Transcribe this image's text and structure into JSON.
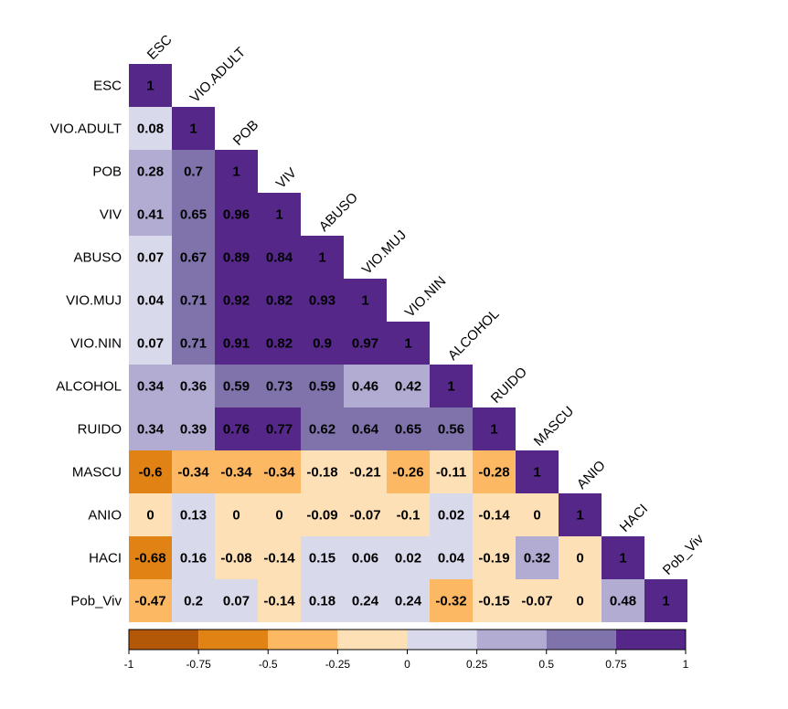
{
  "chart_data": {
    "type": "heatmap",
    "variables": [
      "ESC",
      "VIO.ADULT",
      "POB",
      "VIV",
      "ABUSO",
      "VIO.MUJ",
      "VIO.NIN",
      "ALCOHOL",
      "RUIDO",
      "MASCU",
      "ANIO",
      "HACI",
      "Pob_Viv"
    ],
    "matrix_lower": [
      [
        1
      ],
      [
        0.08,
        1
      ],
      [
        0.28,
        0.7,
        1
      ],
      [
        0.41,
        0.65,
        0.96,
        1
      ],
      [
        0.07,
        0.67,
        0.89,
        0.84,
        1
      ],
      [
        0.04,
        0.71,
        0.92,
        0.82,
        0.93,
        1
      ],
      [
        0.07,
        0.71,
        0.91,
        0.82,
        0.9,
        0.97,
        1
      ],
      [
        0.34,
        0.36,
        0.59,
        0.73,
        0.59,
        0.46,
        0.42,
        1
      ],
      [
        0.34,
        0.39,
        0.76,
        0.77,
        0.62,
        0.64,
        0.65,
        0.56,
        1
      ],
      [
        -0.6,
        -0.34,
        -0.34,
        -0.34,
        -0.18,
        -0.21,
        -0.26,
        -0.11,
        -0.28,
        1
      ],
      [
        0,
        0.13,
        0,
        0,
        -0.09,
        -0.07,
        -0.1,
        0.02,
        -0.14,
        0,
        1
      ],
      [
        -0.68,
        0.16,
        -0.08,
        -0.14,
        0.15,
        0.06,
        0.02,
        0.04,
        -0.19,
        0.32,
        0,
        1
      ],
      [
        -0.47,
        0.2,
        0.07,
        -0.14,
        0.18,
        0.24,
        0.24,
        -0.32,
        -0.15,
        -0.07,
        0,
        0.48,
        1
      ]
    ],
    "legend": {
      "breaks": [
        -1,
        -0.75,
        -0.5,
        -0.25,
        0,
        0.25,
        0.5,
        0.75,
        1
      ],
      "tick_labels": [
        "-1",
        "-0.75",
        "-0.5",
        "-0.25",
        "0",
        "0.25",
        "0.5",
        "0.75",
        "1"
      ],
      "colors": [
        "#b35806",
        "#e08214",
        "#fdb863",
        "#fee0b6",
        "#d8daeb",
        "#b2abd2",
        "#8073ac",
        "#542788"
      ],
      "placement": "bottom"
    }
  }
}
